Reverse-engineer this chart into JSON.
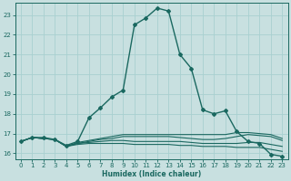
{
  "xlabel": "Humidex (Indice chaleur)",
  "background_color": "#c8e0e0",
  "grid_color": "#a8d0d0",
  "line_color": "#1a6860",
  "xlim": [
    -0.5,
    23.5
  ],
  "ylim": [
    15.7,
    23.6
  ],
  "xticks": [
    0,
    1,
    2,
    3,
    4,
    5,
    6,
    7,
    8,
    9,
    10,
    11,
    12,
    13,
    14,
    15,
    16,
    17,
    18,
    19,
    20,
    21,
    22,
    23
  ],
  "yticks": [
    16,
    17,
    18,
    19,
    20,
    21,
    22,
    23
  ],
  "lines": [
    {
      "x": [
        0,
        1,
        2,
        3,
        4,
        5,
        6,
        7,
        8,
        9,
        10,
        11,
        12,
        13,
        14,
        15,
        16,
        17,
        18,
        19,
        20,
        21,
        22,
        23
      ],
      "y": [
        16.6,
        16.8,
        16.8,
        16.7,
        16.4,
        16.6,
        17.8,
        18.3,
        18.85,
        19.2,
        22.5,
        22.85,
        23.35,
        23.2,
        21.0,
        20.3,
        18.2,
        18.0,
        18.15,
        17.1,
        16.6,
        16.5,
        15.95,
        15.85
      ],
      "marker": "D",
      "markersize": 2.0,
      "linewidth": 1.0,
      "linestyle": "-"
    },
    {
      "x": [
        0,
        1,
        2,
        3,
        4,
        5,
        6,
        7,
        8,
        9,
        10,
        11,
        12,
        13,
        14,
        15,
        16,
        17,
        18,
        19,
        20,
        21,
        22,
        23
      ],
      "y": [
        16.6,
        16.8,
        16.75,
        16.7,
        16.35,
        16.45,
        16.5,
        16.5,
        16.5,
        16.5,
        16.45,
        16.45,
        16.45,
        16.45,
        16.4,
        16.4,
        16.35,
        16.35,
        16.35,
        16.3,
        16.3,
        16.3,
        16.2,
        16.1
      ],
      "marker": null,
      "markersize": 0,
      "linewidth": 0.8,
      "linestyle": "-"
    },
    {
      "x": [
        0,
        1,
        2,
        3,
        4,
        5,
        6,
        7,
        8,
        9,
        10,
        11,
        12,
        13,
        14,
        15,
        16,
        17,
        18,
        19,
        20,
        21,
        22,
        23
      ],
      "y": [
        16.6,
        16.8,
        16.75,
        16.7,
        16.35,
        16.5,
        16.55,
        16.6,
        16.65,
        16.65,
        16.6,
        16.6,
        16.6,
        16.6,
        16.6,
        16.55,
        16.5,
        16.5,
        16.5,
        16.5,
        16.55,
        16.55,
        16.45,
        16.35
      ],
      "marker": null,
      "markersize": 0,
      "linewidth": 0.8,
      "linestyle": "-"
    },
    {
      "x": [
        0,
        1,
        2,
        3,
        4,
        5,
        6,
        7,
        8,
        9,
        10,
        11,
        12,
        13,
        14,
        15,
        16,
        17,
        18,
        19,
        20,
        21,
        22,
        23
      ],
      "y": [
        16.6,
        16.8,
        16.75,
        16.7,
        16.35,
        16.5,
        16.6,
        16.7,
        16.75,
        16.85,
        16.85,
        16.85,
        16.85,
        16.85,
        16.8,
        16.75,
        16.7,
        16.7,
        16.75,
        16.85,
        16.95,
        16.9,
        16.85,
        16.65
      ],
      "marker": null,
      "markersize": 0,
      "linewidth": 0.8,
      "linestyle": "-"
    },
    {
      "x": [
        0,
        1,
        2,
        3,
        4,
        5,
        6,
        7,
        8,
        9,
        10,
        11,
        12,
        13,
        14,
        15,
        16,
        17,
        18,
        19,
        20,
        21,
        22,
        23
      ],
      "y": [
        16.6,
        16.8,
        16.75,
        16.7,
        16.35,
        16.55,
        16.65,
        16.75,
        16.85,
        16.95,
        16.95,
        16.95,
        16.95,
        16.95,
        16.95,
        16.95,
        16.95,
        16.95,
        16.95,
        17.05,
        17.05,
        17.0,
        16.95,
        16.75
      ],
      "marker": null,
      "markersize": 0,
      "linewidth": 0.8,
      "linestyle": "-"
    }
  ]
}
